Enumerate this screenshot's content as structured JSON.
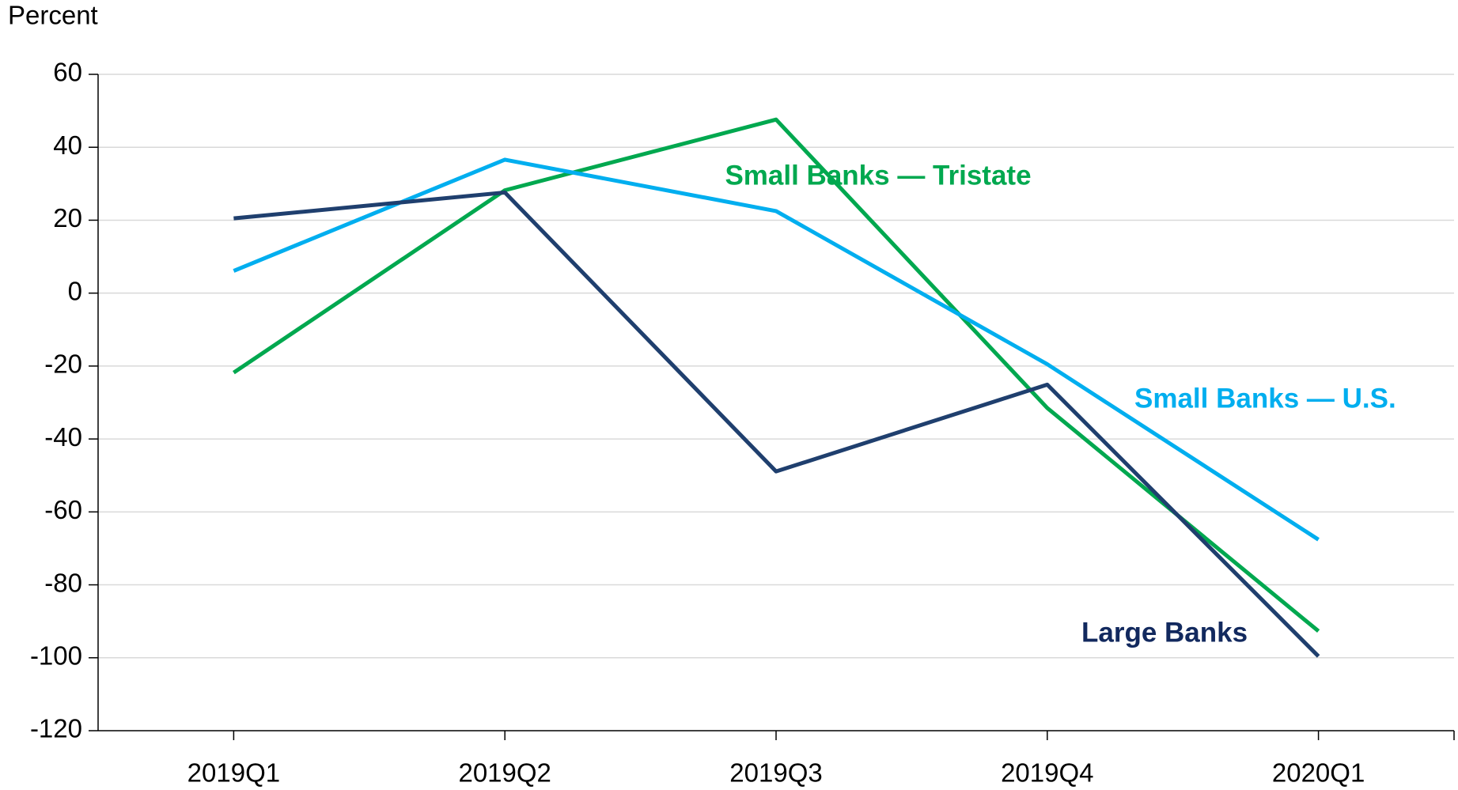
{
  "chart_data": {
    "type": "line",
    "y_label": "Percent",
    "categories": [
      "2019Q1",
      "2019Q2",
      "2019Q3",
      "2019Q4",
      "2020Q1"
    ],
    "series": [
      {
        "name": "Small Banks — Tristate",
        "color": "#00a84f",
        "values": [
          -21.8,
          28.2,
          47.6,
          -31.5,
          -92.7
        ]
      },
      {
        "name": "Small Banks — U.S.",
        "color": "#00aeef",
        "values": [
          6.1,
          36.6,
          22.5,
          -19.5,
          -67.6
        ]
      },
      {
        "name": "Large Banks",
        "color": "#1f3f6e",
        "values": [
          20.5,
          27.6,
          -48.9,
          -25.1,
          -99.6
        ]
      }
    ],
    "ylim": [
      -120,
      60
    ],
    "yticks": [
      -120,
      -100,
      -80,
      -60,
      -40,
      -20,
      0,
      20,
      40,
      60
    ],
    "grid": true
  }
}
